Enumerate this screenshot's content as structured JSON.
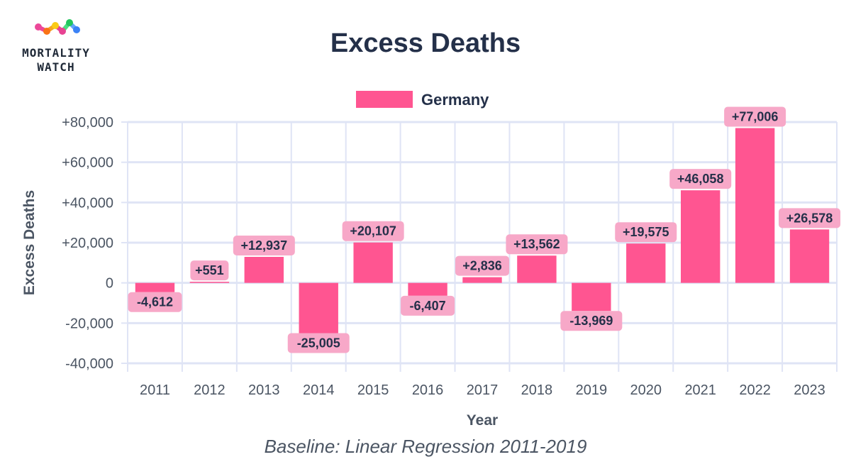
{
  "logo": {
    "line1": "MORTALITY",
    "line2": "WATCH"
  },
  "colors": {
    "bar": "#ff5591",
    "label_bg": "#f7a8c8",
    "grid": "#dfe4f5",
    "axis_text": "#4b5563",
    "title": "#243049"
  },
  "footnote": "Baseline: Linear Regression 2011-2019",
  "chart_data": {
    "type": "bar",
    "title": "Excess Deaths",
    "xlabel": "Year",
    "ylabel": "Excess Deaths",
    "ylim": [
      -40000,
      80000
    ],
    "yticks": [
      80000,
      60000,
      40000,
      20000,
      0,
      -20000,
      -40000
    ],
    "ytick_labels": [
      "+80,000",
      "+60,000",
      "+40,000",
      "+20,000",
      "0",
      "-20,000",
      "-40,000"
    ],
    "categories": [
      "2011",
      "2012",
      "2013",
      "2014",
      "2015",
      "2016",
      "2017",
      "2018",
      "2019",
      "2020",
      "2021",
      "2022",
      "2023"
    ],
    "series": [
      {
        "name": "Germany",
        "values": [
          -4612,
          551,
          12937,
          -25005,
          20107,
          -6407,
          2836,
          13562,
          -13969,
          19575,
          46058,
          77006,
          26578
        ],
        "labels": [
          "-4,612",
          "+551",
          "+12,937",
          "-25,005",
          "+20,107",
          "-6,407",
          "+2,836",
          "+13,562",
          "-13,969",
          "+19,575",
          "+46,058",
          "+77,006",
          "+26,578"
        ]
      }
    ],
    "legend": "top-center",
    "grid": true
  }
}
